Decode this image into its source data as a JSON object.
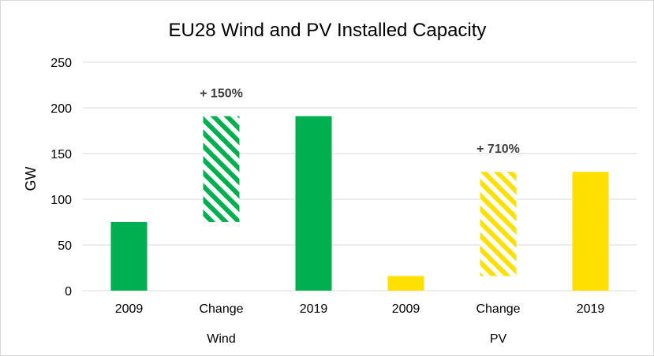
{
  "chart_data": {
    "type": "bar",
    "title": "EU28 Wind and PV Installed Capacity",
    "ylabel": "GW",
    "xlabel": "",
    "ylim": [
      0,
      250
    ],
    "yticks": [
      0,
      50,
      100,
      150,
      200,
      250
    ],
    "grid": true,
    "legend": "none",
    "categories": [
      "2009",
      "Change",
      "2019",
      "2009",
      "Change",
      "2019"
    ],
    "groups": [
      {
        "label": "Wind",
        "categories": [
          "2009",
          "Change",
          "2019"
        ]
      },
      {
        "label": "PV",
        "categories": [
          "2009",
          "Change",
          "2019"
        ]
      }
    ],
    "bars": [
      {
        "group": "Wind",
        "category": "2009",
        "start": 0,
        "end": 75,
        "style": "solid",
        "color": "#00b050"
      },
      {
        "group": "Wind",
        "category": "Change",
        "start": 75,
        "end": 191,
        "style": "hatched",
        "color": "#00b050",
        "annotation": "+ 150%"
      },
      {
        "group": "Wind",
        "category": "2019",
        "start": 0,
        "end": 191,
        "style": "solid",
        "color": "#00b050"
      },
      {
        "group": "PV",
        "category": "2009",
        "start": 0,
        "end": 16,
        "style": "solid",
        "color": "#ffe000"
      },
      {
        "group": "PV",
        "category": "Change",
        "start": 16,
        "end": 130,
        "style": "hatched",
        "color": "#ffe000",
        "annotation": "+ 710%"
      },
      {
        "group": "PV",
        "category": "2019",
        "start": 0,
        "end": 130,
        "style": "solid",
        "color": "#ffe000"
      }
    ],
    "colors": {
      "wind": "#00b050",
      "pv": "#ffe000",
      "grid": "#d9d9d9",
      "annotation": "#404040"
    }
  }
}
